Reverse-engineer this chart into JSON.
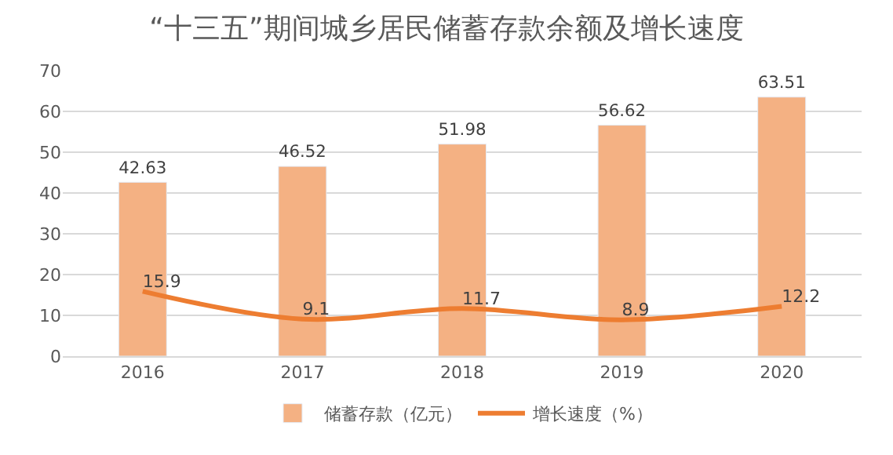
{
  "chart_data": {
    "type": "bar",
    "title": "“十三五”期间城乡居民储蓄存款余额及增长速度",
    "categories": [
      "2016",
      "2017",
      "2018",
      "2019",
      "2020"
    ],
    "series": [
      {
        "name": "储蓄存款（亿元）",
        "color": "#f4b183",
        "values": [
          42.63,
          46.52,
          51.98,
          56.62,
          63.51
        ]
      },
      {
        "name": "增长速度（%）",
        "type": "line",
        "color": "#ed7d31",
        "values": [
          15.9,
          9.1,
          11.7,
          8.9,
          12.2
        ]
      }
    ],
    "ylim": [
      0,
      70
    ],
    "yticks": [
      0,
      10,
      20,
      30,
      40,
      50,
      60,
      70
    ],
    "grid": "y",
    "legend": "bottom",
    "data_labels": true
  }
}
